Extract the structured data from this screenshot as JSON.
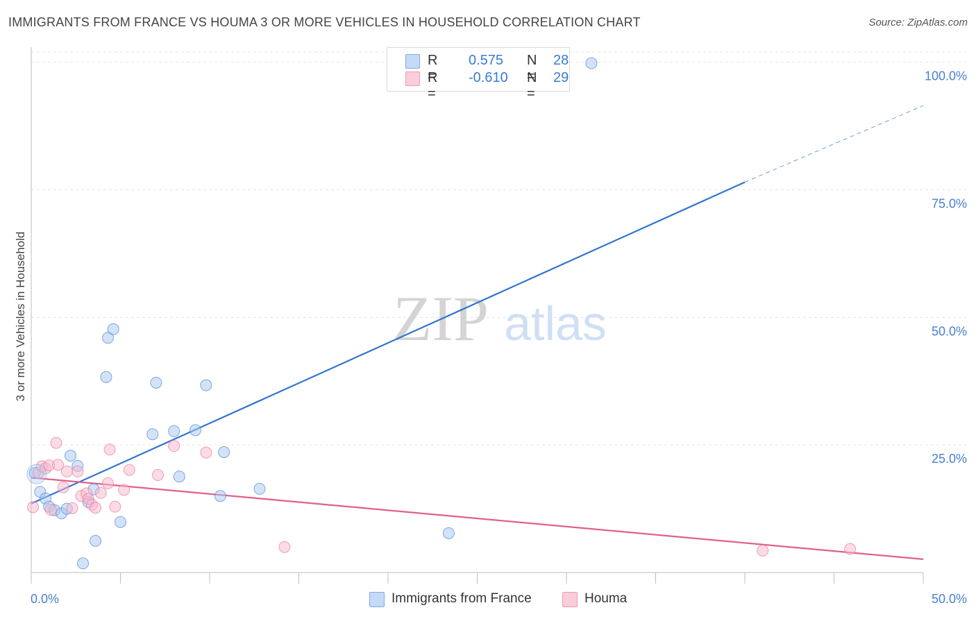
{
  "title": "IMMIGRANTS FROM FRANCE VS HOUMA 3 OR MORE VEHICLES IN HOUSEHOLD CORRELATION CHART",
  "source": "Source: ZipAtlas.com",
  "watermark": {
    "zip": "ZIP",
    "atlas": "atlas"
  },
  "legend_stats": [
    {
      "r_label": "R =",
      "r_value": "0.575",
      "n_label": "N =",
      "n_value": "28",
      "color": "#a8c8f0"
    },
    {
      "r_label": "R =",
      "r_value": "-0.610",
      "n_label": "N =",
      "n_value": "29",
      "color": "#f7b7c9"
    }
  ],
  "chart_data": {
    "type": "scatter",
    "xlabel": "",
    "ylabel": "3 or more Vehicles in Household",
    "xlim": [
      0,
      50
    ],
    "ylim": [
      0,
      102
    ],
    "x_tick_labels": [
      "0.0%",
      "50.0%"
    ],
    "y_ticks": [
      25,
      50,
      75,
      100
    ],
    "y_tick_labels": [
      "25.0%",
      "50.0%",
      "75.0%",
      "100.0%"
    ],
    "grid": true,
    "legend_position": "bottom",
    "series": [
      {
        "name": "Immigrants from France",
        "color": "#4a86d8",
        "fill": "#a8c8f0",
        "trend": {
          "x": [
            0,
            40
          ],
          "y": [
            13.5,
            76.5
          ],
          "dashed_to": [
            50,
            91.5
          ],
          "color": "#2f74d0"
        },
        "points": [
          [
            0.2,
            19.5
          ],
          [
            0.5,
            15.8
          ],
          [
            0.8,
            14.5
          ],
          [
            1.0,
            12.9
          ],
          [
            1.3,
            12.2
          ],
          [
            1.7,
            11.6
          ],
          [
            2.0,
            12.5
          ],
          [
            2.2,
            22.9
          ],
          [
            2.6,
            20.9
          ],
          [
            2.9,
            1.8
          ],
          [
            3.5,
            16.3
          ],
          [
            3.6,
            6.2
          ],
          [
            4.2,
            38.3
          ],
          [
            4.3,
            46.0
          ],
          [
            4.6,
            47.7
          ],
          [
            5.0,
            9.9
          ],
          [
            6.8,
            27.1
          ],
          [
            7.0,
            37.2
          ],
          [
            8.0,
            27.7
          ],
          [
            8.3,
            18.8
          ],
          [
            9.2,
            27.9
          ],
          [
            9.8,
            36.7
          ],
          [
            10.6,
            15.0
          ],
          [
            10.8,
            23.6
          ],
          [
            12.8,
            16.4
          ],
          [
            23.4,
            7.7
          ],
          [
            31.4,
            99.8
          ],
          [
            3.2,
            13.8
          ]
        ]
      },
      {
        "name": "Houma",
        "color": "#e87aa0",
        "fill": "#f7b7c9",
        "trend": {
          "x": [
            0,
            50
          ],
          "y": [
            18.6,
            2.6
          ],
          "color": "#e0608a"
        },
        "points": [
          [
            0.1,
            12.8
          ],
          [
            0.4,
            19.5
          ],
          [
            0.6,
            20.8
          ],
          [
            0.8,
            20.4
          ],
          [
            1.0,
            21.0
          ],
          [
            1.1,
            12.3
          ],
          [
            1.4,
            25.4
          ],
          [
            1.5,
            21.1
          ],
          [
            1.8,
            16.7
          ],
          [
            2.0,
            19.8
          ],
          [
            2.3,
            12.6
          ],
          [
            2.6,
            19.8
          ],
          [
            2.8,
            15.0
          ],
          [
            3.1,
            15.5
          ],
          [
            3.2,
            14.4
          ],
          [
            3.4,
            13.3
          ],
          [
            3.6,
            12.7
          ],
          [
            3.9,
            15.6
          ],
          [
            4.3,
            17.5
          ],
          [
            4.4,
            24.1
          ],
          [
            4.7,
            12.9
          ],
          [
            5.2,
            16.2
          ],
          [
            5.5,
            20.1
          ],
          [
            7.1,
            19.1
          ],
          [
            8.0,
            24.8
          ],
          [
            9.8,
            23.5
          ],
          [
            14.2,
            5.0
          ],
          [
            41.0,
            4.3
          ],
          [
            45.9,
            4.6
          ]
        ]
      }
    ]
  }
}
